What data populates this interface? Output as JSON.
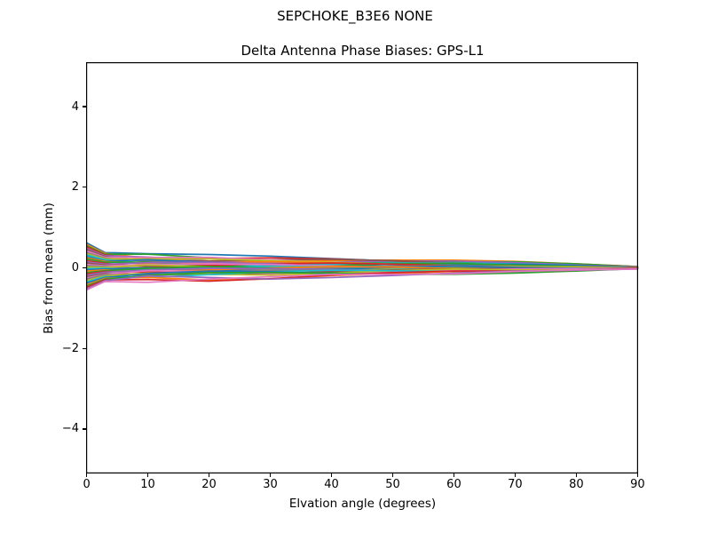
{
  "chart_data": {
    "type": "line",
    "suptitle": "SEPCHOKE_B3E6   NONE",
    "title": "Delta Antenna Phase Biases: GPS-L1",
    "xlabel": "Elvation angle (degrees)",
    "ylabel": "Bias from mean (mm)",
    "xlim": [
      0,
      90
    ],
    "ylim": [
      -5.09,
      5.09
    ],
    "xticks": [
      0,
      10,
      20,
      30,
      40,
      50,
      60,
      70,
      80,
      90
    ],
    "yticks": [
      -4,
      -2,
      0,
      2,
      4
    ],
    "grid": false,
    "legend": "none",
    "background_color": "#ffffff",
    "frame_color": "#000000",
    "line_width": 1.7,
    "x": [
      0,
      3,
      10,
      20,
      30,
      40,
      50,
      60,
      70,
      80,
      90
    ],
    "series": [
      {
        "color": "#1f77b4",
        "values": [
          0.62,
          0.38,
          0.35,
          0.33,
          0.29,
          0.23,
          0.17,
          0.12,
          0.11,
          0.08,
          0.03
        ]
      },
      {
        "color": "#ff7f0e",
        "values": [
          0.58,
          0.36,
          0.24,
          0.16,
          0.16,
          0.18,
          0.19,
          0.19,
          0.16,
          0.1,
          0.03
        ]
      },
      {
        "color": "#2ca02c",
        "values": [
          0.55,
          0.34,
          0.34,
          0.25,
          0.17,
          0.13,
          0.14,
          0.15,
          0.15,
          0.1,
          0.03
        ]
      },
      {
        "color": "#d62728",
        "values": [
          0.52,
          0.32,
          0.22,
          0.23,
          0.25,
          0.22,
          0.17,
          0.12,
          0.08,
          0.07,
          0.03
        ]
      },
      {
        "color": "#9467bd",
        "values": [
          0.48,
          0.3,
          0.27,
          0.17,
          0.12,
          0.14,
          0.17,
          0.17,
          0.13,
          0.07,
          0.02
        ]
      },
      {
        "color": "#8c564b",
        "values": [
          0.45,
          0.28,
          0.17,
          0.17,
          0.2,
          0.21,
          0.18,
          0.12,
          0.08,
          0.06,
          0.02
        ]
      },
      {
        "color": "#e377c2",
        "values": [
          0.42,
          0.26,
          0.26,
          0.26,
          0.2,
          0.13,
          0.09,
          0.06,
          0.07,
          0.06,
          0.02
        ]
      },
      {
        "color": "#7f7f7f",
        "values": [
          0.38,
          0.24,
          0.16,
          0.1,
          0.06,
          0.08,
          0.1,
          0.12,
          0.09,
          0.06,
          0.02
        ]
      },
      {
        "color": "#bcbd22",
        "values": [
          0.35,
          0.22,
          0.22,
          0.22,
          0.18,
          0.14,
          0.09,
          0.05,
          0.05,
          0.04,
          0.02
        ]
      },
      {
        "color": "#17becf",
        "values": [
          0.32,
          0.2,
          0.11,
          0.05,
          0.06,
          0.09,
          0.12,
          0.12,
          0.1,
          0.06,
          0.02
        ]
      },
      {
        "color": "#1f77b4",
        "values": [
          0.28,
          0.17,
          0.2,
          0.14,
          0.07,
          0.04,
          0.05,
          0.08,
          0.09,
          0.06,
          0.01
        ]
      },
      {
        "color": "#ff7f0e",
        "values": [
          0.25,
          0.16,
          0.09,
          0.12,
          0.15,
          0.13,
          0.09,
          0.05,
          0.03,
          0.03,
          0.01
        ]
      },
      {
        "color": "#2ca02c",
        "values": [
          0.22,
          0.14,
          0.14,
          0.06,
          0.02,
          0.05,
          0.1,
          0.11,
          0.07,
          0.03,
          0.01
        ]
      },
      {
        "color": "#d62728",
        "values": [
          0.18,
          0.11,
          0.03,
          0.06,
          0.1,
          0.12,
          0.09,
          0.05,
          0.02,
          0.02,
          0.01
        ]
      },
      {
        "color": "#9467bd",
        "values": [
          0.15,
          0.09,
          0.13,
          0.14,
          0.1,
          0.04,
          0.01,
          -0.01,
          0.01,
          0.02,
          0.01
        ]
      },
      {
        "color": "#8c564b",
        "values": [
          0.12,
          0.07,
          0.03,
          -0.01,
          -0.03,
          -0.01,
          0.03,
          0.05,
          0.04,
          0.02,
          0.01
        ]
      },
      {
        "color": "#e377c2",
        "values": [
          0.08,
          0.05,
          0.08,
          0.1,
          0.08,
          0.05,
          0.0,
          -0.02,
          -0.01,
          0.0,
          0.0
        ]
      },
      {
        "color": "#7f7f7f",
        "values": [
          0.05,
          0.03,
          -0.02,
          -0.06,
          -0.04,
          0.0,
          0.04,
          0.05,
          0.04,
          0.02,
          0.0
        ]
      },
      {
        "color": "#bcbd22",
        "values": [
          0.02,
          0.01,
          0.07,
          0.03,
          -0.03,
          -0.05,
          -0.02,
          0.02,
          0.03,
          0.02,
          0.0
        ]
      },
      {
        "color": "#17becf",
        "values": [
          -0.02,
          -0.01,
          -0.05,
          0.0,
          0.04,
          0.03,
          0.0,
          -0.03,
          -0.03,
          -0.01,
          0.0
        ]
      },
      {
        "color": "#1f77b4",
        "values": [
          -0.05,
          -0.03,
          0.0,
          -0.05,
          -0.08,
          -0.04,
          0.01,
          0.04,
          0.01,
          -0.01,
          0.0
        ]
      },
      {
        "color": "#ff7f0e",
        "values": [
          -0.08,
          -0.05,
          -0.1,
          -0.05,
          0.0,
          0.03,
          0.02,
          -0.02,
          -0.04,
          -0.02,
          0.0
        ]
      },
      {
        "color": "#2ca02c",
        "values": [
          -0.12,
          -0.07,
          -0.01,
          0.03,
          -0.01,
          -0.05,
          -0.08,
          -0.08,
          -0.05,
          -0.02,
          -0.01
        ]
      },
      {
        "color": "#d62728",
        "values": [
          -0.15,
          -0.09,
          -0.11,
          -0.12,
          -0.14,
          -0.1,
          -0.06,
          -0.02,
          -0.02,
          -0.02,
          -0.01
        ]
      },
      {
        "color": "#9467bd",
        "values": [
          -0.18,
          -0.11,
          -0.05,
          -0.01,
          -0.02,
          -0.04,
          -0.07,
          -0.09,
          -0.07,
          -0.04,
          -0.01
        ]
      },
      {
        "color": "#8c564b",
        "values": [
          -0.22,
          -0.14,
          -0.16,
          -0.17,
          -0.14,
          -0.09,
          -0.05,
          -0.02,
          -0.02,
          -0.02,
          -0.01
        ]
      },
      {
        "color": "#e377c2",
        "values": [
          -0.25,
          -0.16,
          -0.07,
          -0.09,
          -0.14,
          -0.15,
          -0.11,
          -0.06,
          -0.03,
          -0.02,
          -0.01
        ]
      },
      {
        "color": "#7f7f7f",
        "values": [
          -0.28,
          -0.17,
          -0.18,
          -0.11,
          -0.06,
          -0.06,
          -0.07,
          -0.09,
          -0.09,
          -0.05,
          -0.01
        ]
      },
      {
        "color": "#bcbd22",
        "values": [
          -0.32,
          -0.2,
          -0.13,
          -0.16,
          -0.18,
          -0.13,
          -0.07,
          -0.03,
          -0.05,
          -0.05,
          -0.02
        ]
      },
      {
        "color": "#17becf",
        "values": [
          -0.35,
          -0.22,
          -0.24,
          -0.17,
          -0.1,
          -0.06,
          -0.07,
          -0.09,
          -0.1,
          -0.06,
          -0.02
        ]
      },
      {
        "color": "#1f77b4",
        "values": [
          -0.38,
          -0.24,
          -0.14,
          -0.08,
          -0.1,
          -0.14,
          -0.15,
          -0.15,
          -0.1,
          -0.06,
          -0.02
        ]
      },
      {
        "color": "#ff7f0e",
        "values": [
          -0.42,
          -0.26,
          -0.24,
          -0.3,
          -0.28,
          -0.19,
          -0.14,
          -0.09,
          -0.08,
          -0.06,
          -0.02
        ]
      },
      {
        "color": "#2ca02c",
        "values": [
          -0.45,
          -0.28,
          -0.19,
          -0.12,
          -0.12,
          -0.13,
          -0.16,
          -0.16,
          -0.13,
          -0.08,
          -0.02
        ]
      },
      {
        "color": "#d62728",
        "values": [
          -0.48,
          -0.3,
          -0.29,
          -0.33,
          -0.27,
          -0.18,
          -0.12,
          -0.08,
          -0.08,
          -0.06,
          -0.02
        ]
      },
      {
        "color": "#9467bd",
        "values": [
          -0.52,
          -0.32,
          -0.2,
          -0.24,
          -0.28,
          -0.24,
          -0.19,
          -0.13,
          -0.08,
          -0.06,
          -0.03
        ]
      },
      {
        "color": "#e377c2",
        "values": [
          -0.55,
          -0.34,
          -0.36,
          -0.28,
          -0.22,
          -0.16,
          -0.16,
          -0.15,
          -0.09,
          -0.05,
          -0.03
        ]
      }
    ]
  }
}
